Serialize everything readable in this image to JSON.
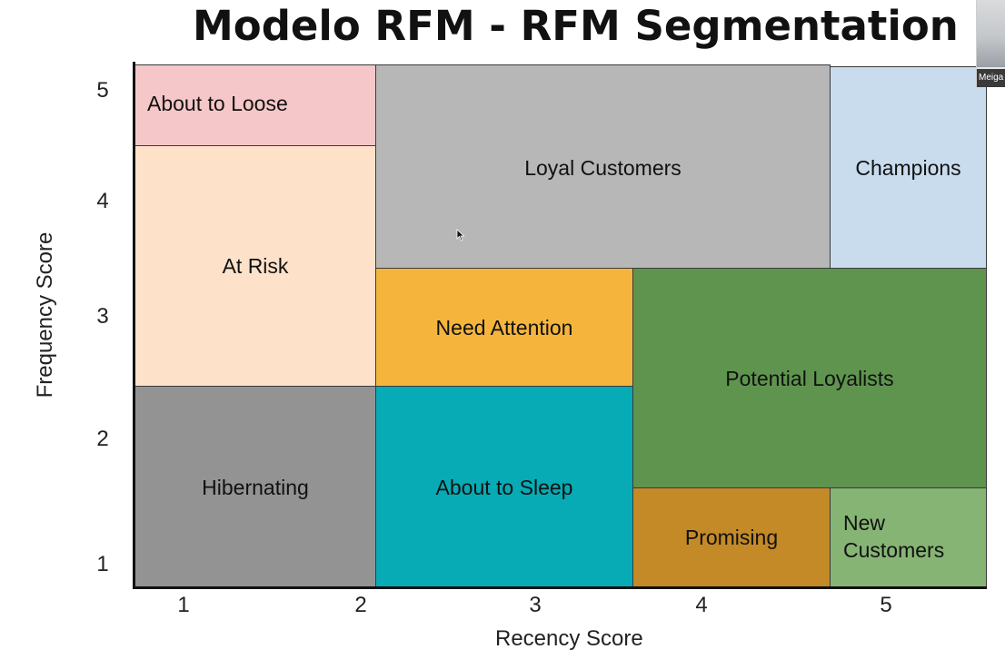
{
  "title": "Modelo RFM - RFM Segmentation",
  "axes": {
    "x_title": "Recency Score",
    "y_title": "Frequency Score",
    "x_ticks": [
      "1",
      "2",
      "3",
      "4",
      "5"
    ],
    "y_ticks": [
      "5",
      "4",
      "3",
      "2",
      "1"
    ]
  },
  "segments": {
    "about_to_loose": {
      "label": "About to Loose",
      "color": "#f6c7c8"
    },
    "at_risk": {
      "label": "At Risk",
      "color": "#fde1c9"
    },
    "loyal_customers": {
      "label": "Loyal Customers",
      "color": "#b7b7b7"
    },
    "champions": {
      "label": "Champions",
      "color": "#c8dcee"
    },
    "need_attention": {
      "label": "Need Attention",
      "color": "#f5b53d"
    },
    "potential_loyalists": {
      "label": "Potential Loyalists",
      "color": "#5f944f"
    },
    "hibernating": {
      "label": "Hibernating",
      "color": "#939393"
    },
    "about_to_sleep": {
      "label": "About to Sleep",
      "color": "#06abb5"
    },
    "promising": {
      "label": "Promising",
      "color": "#c38a27"
    },
    "new_customers": {
      "label": "New\nCustomers",
      "color": "#86b474"
    }
  },
  "webcam": {
    "name": "Meiga"
  }
}
